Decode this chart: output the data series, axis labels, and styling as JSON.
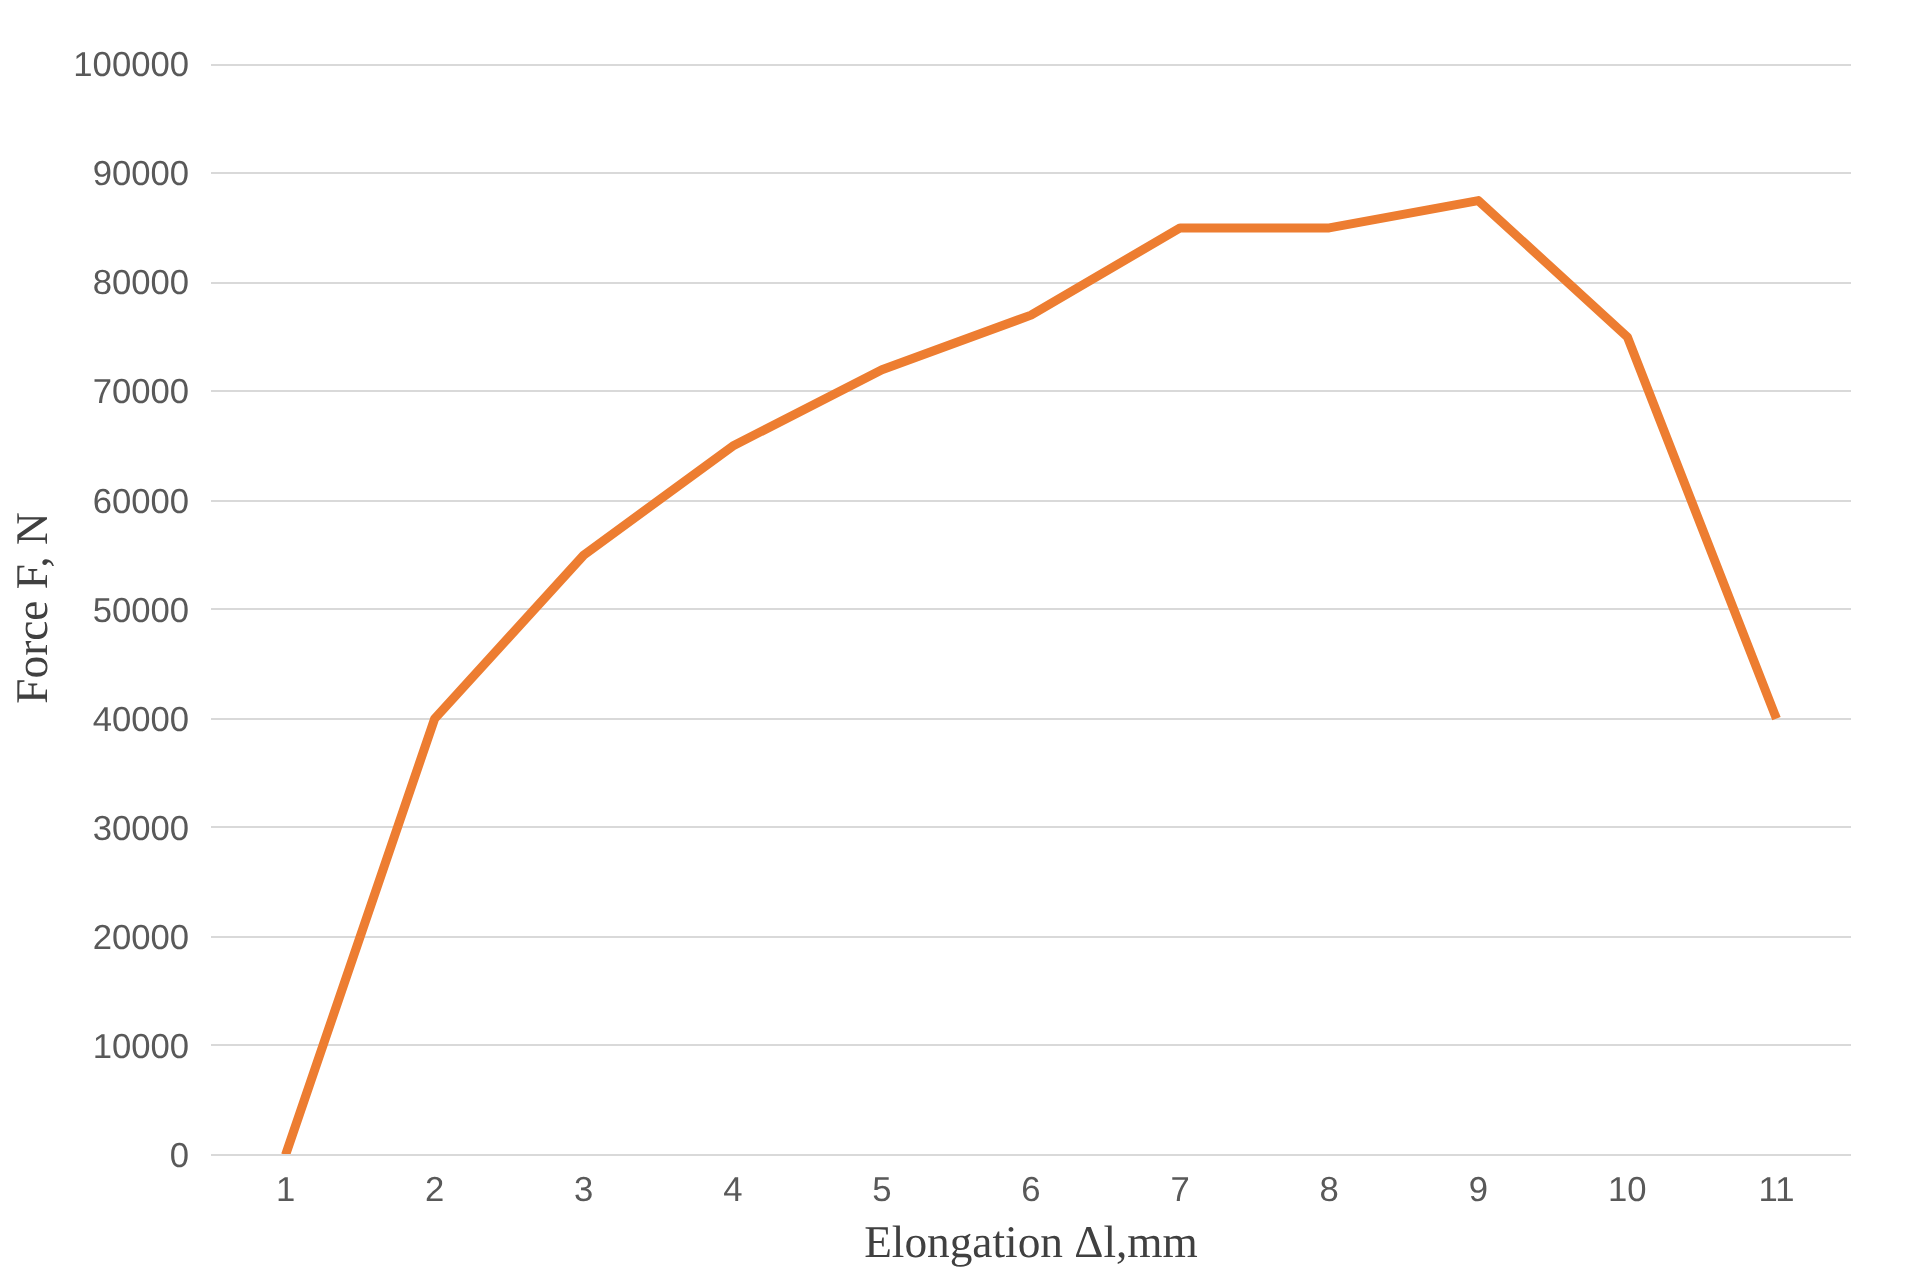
{
  "chart_data": {
    "type": "line",
    "xlabel": "Elongation Δl,mm",
    "ylabel": "Force F, N",
    "categories": [
      "1",
      "2",
      "3",
      "4",
      "5",
      "6",
      "7",
      "8",
      "9",
      "10",
      "11"
    ],
    "series": [
      {
        "color": "#ed7d31",
        "values": [
          0,
          40000,
          55000,
          65000,
          72000,
          77000,
          85000,
          85000,
          87500,
          75000,
          40000
        ]
      }
    ],
    "ylim": [
      0,
      100000
    ],
    "yticks": [
      0,
      10000,
      20000,
      30000,
      40000,
      50000,
      60000,
      70000,
      80000,
      90000,
      100000
    ],
    "grid": "y",
    "marker": "none",
    "line_style": "solid"
  }
}
